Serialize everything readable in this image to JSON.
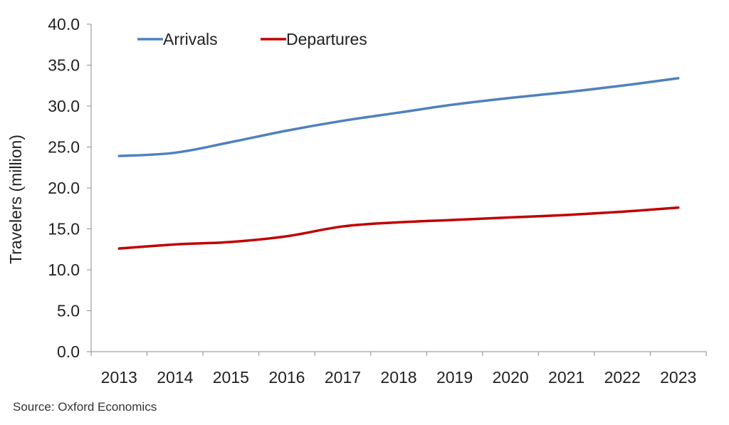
{
  "chart_data": {
    "type": "line",
    "categories": [
      "2013",
      "2014",
      "2015",
      "2016",
      "2017",
      "2018",
      "2019",
      "2020",
      "2021",
      "2022",
      "2023"
    ],
    "series": [
      {
        "name": "Arrivals",
        "color": "#4f81bd",
        "values": [
          23.9,
          24.3,
          25.6,
          27.0,
          28.2,
          29.2,
          30.2,
          31.0,
          31.7,
          32.5,
          33.4
        ]
      },
      {
        "name": "Departures",
        "color": "#c00000",
        "values": [
          12.6,
          13.1,
          13.4,
          14.1,
          15.3,
          15.8,
          16.1,
          16.4,
          16.7,
          17.1,
          17.6
        ]
      }
    ],
    "ylabel": "Travelers (million)",
    "xlabel": "",
    "ylim": [
      0,
      40
    ],
    "yticks": [
      "0.0",
      "5.0",
      "10.0",
      "15.0",
      "20.0",
      "25.0",
      "30.0",
      "35.0",
      "40.0"
    ],
    "grid": false,
    "legend_position": "top-left"
  },
  "source": "Source:  Oxford Economics"
}
